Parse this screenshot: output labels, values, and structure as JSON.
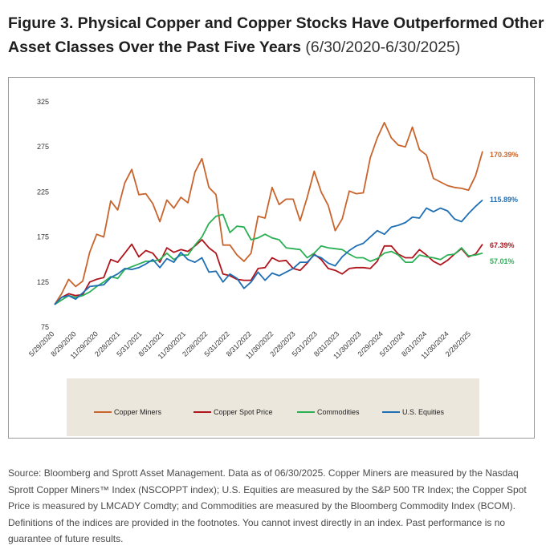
{
  "title": {
    "bold": "Figure 3. Physical Copper and Copper Stocks Have Outperformed Other Asset Classes Over the Past Five Years",
    "range": "(6/30/2020-6/30/2025)"
  },
  "footnote": "Source: Bloomberg and Sprott Asset Management. Data as of 06/30/2025. Copper Miners are measured by the Nasdaq Sprott Copper Miners™ Index (NSCOPPT index); U.S. Equities are measured by the S&P 500 TR Index; the Copper Spot Price is measured by LMCADY Comdty; and Commodities are measured by the Bloomberg Commodity Index (BCOM). Definitions of the indices are provided in the footnotes. You cannot invest directly in an index. Past performance is no guarantee of future results.",
  "legend": [
    {
      "label": "Copper Miners",
      "color": "#c8642c"
    },
    {
      "label": "Copper Spot Price",
      "color": "#b0141c"
    },
    {
      "label": "Commodities",
      "color": "#2bb055"
    },
    {
      "label": "U.S. Equities",
      "color": "#1f6fb5"
    }
  ],
  "chart_data": {
    "type": "line",
    "ylim": [
      75,
      325
    ],
    "yticks": [
      75,
      125,
      175,
      225,
      275,
      325
    ],
    "xticklabels": [
      "5/29/2020",
      "8/29/2020",
      "11/29/2020",
      "2/28/2021",
      "5/31/2021",
      "8/31/2021",
      "11/30/2021",
      "2/28/2022",
      "5/31/2022",
      "8/31/2022",
      "11/30/2022",
      "2/28/2023",
      "5/31/2023",
      "8/31/2023",
      "11/30/2023",
      "2/29/2024",
      "5/31/2024",
      "8/31/2024",
      "11/30/2024",
      "2/28/2025"
    ],
    "grid": false,
    "legend_position": "bottom",
    "series": [
      {
        "name": "Copper Miners",
        "color": "#c8642c",
        "end_label": "170.39%",
        "values": [
          100,
          112,
          128,
          120,
          126,
          158,
          178,
          175,
          215,
          205,
          235,
          250,
          222,
          223,
          212,
          192,
          216,
          207,
          219,
          213,
          247,
          262,
          230,
          222,
          166,
          166,
          155,
          148,
          157,
          198,
          196,
          230,
          211,
          217,
          217,
          193,
          219,
          248,
          225,
          210,
          182,
          195,
          226,
          223,
          224,
          263,
          285,
          302,
          285,
          277,
          275,
          297,
          272,
          266,
          240,
          236,
          232,
          230,
          229,
          227,
          243,
          270
        ]
      },
      {
        "name": "Copper Spot Price",
        "color": "#b0141c",
        "end_label": "67.39%",
        "values": [
          100,
          108,
          112,
          110,
          111,
          125,
          128,
          130,
          150,
          147,
          157,
          167,
          153,
          160,
          157,
          147,
          163,
          158,
          161,
          159,
          165,
          172,
          163,
          157,
          134,
          132,
          128,
          127,
          127,
          140,
          141,
          152,
          148,
          149,
          140,
          138,
          146,
          156,
          150,
          140,
          138,
          134,
          140,
          141,
          141,
          140,
          148,
          165,
          165,
          156,
          152,
          152,
          161,
          155,
          148,
          144,
          149,
          156,
          162,
          153,
          156,
          167
        ]
      },
      {
        "name": "Commodities",
        "color": "#2bb055",
        "end_label": "57.01%",
        "values": [
          100,
          105,
          110,
          108,
          110,
          114,
          120,
          125,
          131,
          129,
          139,
          142,
          145,
          148,
          148,
          150,
          157,
          150,
          155,
          155,
          166,
          175,
          190,
          198,
          200,
          180,
          187,
          186,
          172,
          174,
          178,
          174,
          172,
          163,
          162,
          161,
          152,
          157,
          165,
          163,
          162,
          161,
          156,
          152,
          152,
          148,
          151,
          157,
          159,
          155,
          147,
          147,
          155,
          153,
          152,
          150,
          155,
          156,
          163,
          154,
          155,
          157
        ]
      },
      {
        "name": "U.S. Equities",
        "color": "#1f6fb5",
        "end_label": "115.89%",
        "values": [
          100,
          108,
          110,
          106,
          113,
          120,
          121,
          122,
          130,
          134,
          140,
          139,
          141,
          145,
          150,
          141,
          151,
          147,
          158,
          150,
          147,
          152,
          136,
          137,
          125,
          134,
          129,
          118,
          125,
          136,
          127,
          135,
          132,
          136,
          140,
          147,
          147,
          155,
          152,
          146,
          143,
          153,
          160,
          165,
          168,
          175,
          182,
          178,
          186,
          188,
          191,
          197,
          196,
          207,
          203,
          207,
          204,
          195,
          192,
          201,
          209,
          216
        ]
      }
    ]
  }
}
